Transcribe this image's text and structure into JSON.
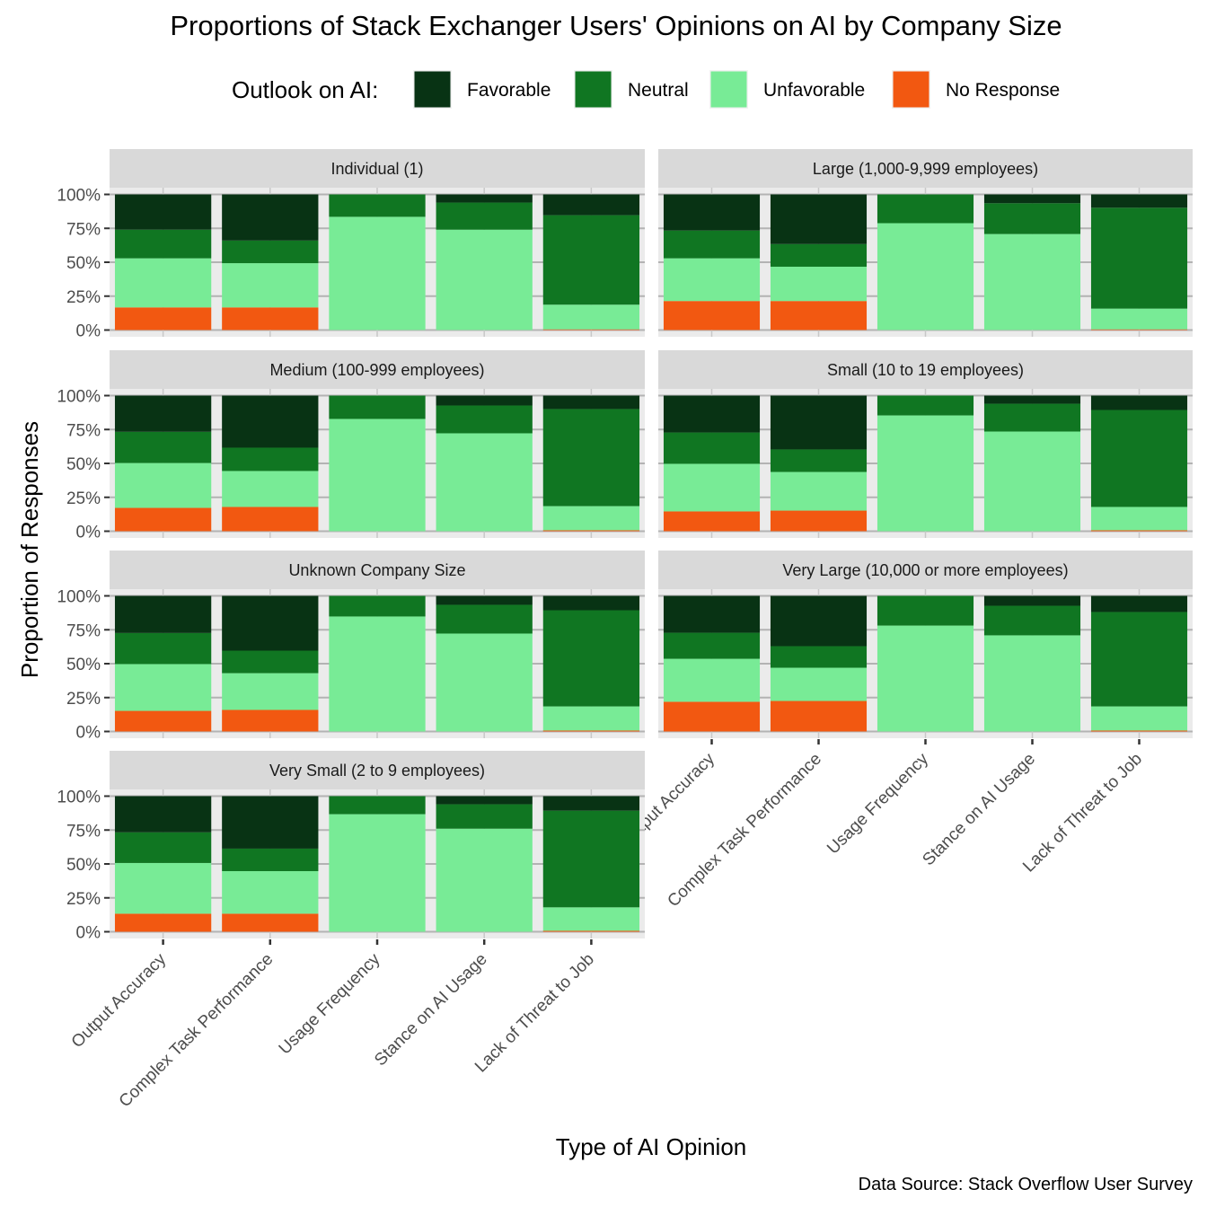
{
  "chart_data": {
    "type": "bar",
    "stacked": true,
    "title": "Proportions of Stack Exchanger Users' Opinions on AI by Company Size",
    "xlabel": "Type of AI Opinion",
    "ylabel": "Proportion of Responses",
    "caption": "Data Source: Stack Overflow User Survey",
    "legend": {
      "title": "Outlook on AI:",
      "position": "top",
      "entries": [
        {
          "name": "Favorable",
          "color": "#083314"
        },
        {
          "name": "Neutral",
          "color": "#107622"
        },
        {
          "name": "Unfavorable",
          "color": "#78EB96"
        },
        {
          "name": "No Response",
          "color": "#F25811"
        }
      ]
    },
    "ylim": [
      0,
      1
    ],
    "yticks": [
      "0%",
      "25%",
      "50%",
      "75%",
      "100%"
    ],
    "grid": true,
    "categories": [
      "Output Accuracy",
      "Complex Task Performance",
      "Usage Frequency",
      "Stance on AI Usage",
      "Lack of Threat to Job"
    ],
    "stack_order_bottom_to_top": [
      "No Response",
      "Unfavorable",
      "Neutral",
      "Favorable"
    ],
    "panels": [
      {
        "facet": "Individual (1)",
        "series": [
          {
            "name": "Favorable",
            "values": [
              0.26,
              0.34,
              0.0,
              0.06,
              0.153
            ]
          },
          {
            "name": "Neutral",
            "values": [
              0.211,
              0.167,
              0.165,
              0.2,
              0.66
            ]
          },
          {
            "name": "Unfavorable",
            "values": [
              0.362,
              0.326,
              0.835,
              0.74,
              0.182
            ]
          },
          {
            "name": "No Response",
            "values": [
              0.167,
              0.167,
              0.0,
              0.0,
              0.005
            ]
          }
        ]
      },
      {
        "facet": "Large (1,000-9,999 employees)",
        "series": [
          {
            "name": "Favorable",
            "values": [
              0.266,
              0.366,
              0.0,
              0.065,
              0.098
            ]
          },
          {
            "name": "Neutral",
            "values": [
              0.205,
              0.167,
              0.212,
              0.227,
              0.744
            ]
          },
          {
            "name": "Unfavorable",
            "values": [
              0.315,
              0.253,
              0.788,
              0.708,
              0.153
            ]
          },
          {
            "name": "No Response",
            "values": [
              0.214,
              0.214,
              0.0,
              0.0,
              0.005
            ]
          }
        ]
      },
      {
        "facet": "Medium (100-999 employees)",
        "series": [
          {
            "name": "Favorable",
            "values": [
              0.267,
              0.384,
              0.0,
              0.073,
              0.099
            ]
          },
          {
            "name": "Neutral",
            "values": [
              0.23,
              0.172,
              0.172,
              0.205,
              0.716
            ]
          },
          {
            "name": "Unfavorable",
            "values": [
              0.331,
              0.265,
              0.828,
              0.722,
              0.178
            ]
          },
          {
            "name": "No Response",
            "values": [
              0.172,
              0.179,
              0.0,
              0.0,
              0.007
            ]
          }
        ]
      },
      {
        "facet": "Small (10 to 19 employees)",
        "series": [
          {
            "name": "Favorable",
            "values": [
              0.272,
              0.397,
              0.0,
              0.06,
              0.106
            ]
          },
          {
            "name": "Neutral",
            "values": [
              0.231,
              0.166,
              0.146,
              0.205,
              0.715
            ]
          },
          {
            "name": "Unfavorable",
            "values": [
              0.351,
              0.285,
              0.854,
              0.735,
              0.172
            ]
          },
          {
            "name": "No Response",
            "values": [
              0.146,
              0.152,
              0.0,
              0.0,
              0.007
            ]
          }
        ]
      },
      {
        "facet": "Unknown Company Size",
        "series": [
          {
            "name": "Favorable",
            "values": [
              0.274,
              0.404,
              0.0,
              0.066,
              0.106
            ]
          },
          {
            "name": "Neutral",
            "values": [
              0.229,
              0.166,
              0.152,
              0.212,
              0.709
            ]
          },
          {
            "name": "Unfavorable",
            "values": [
              0.345,
              0.271,
              0.848,
              0.722,
              0.178
            ]
          },
          {
            "name": "No Response",
            "values": [
              0.152,
              0.159,
              0.0,
              0.0,
              0.007
            ]
          }
        ]
      },
      {
        "facet": "Very Large (10,000 or more employees)",
        "series": [
          {
            "name": "Favorable",
            "values": [
              0.272,
              0.371,
              0.0,
              0.073,
              0.119
            ]
          },
          {
            "name": "Neutral",
            "values": [
              0.192,
              0.159,
              0.219,
              0.218,
              0.696
            ]
          },
          {
            "name": "Unfavorable",
            "values": [
              0.317,
              0.245,
              0.781,
              0.709,
              0.178
            ]
          },
          {
            "name": "No Response",
            "values": [
              0.219,
              0.225,
              0.0,
              0.0,
              0.007
            ]
          }
        ]
      },
      {
        "facet": "Very Small (2 to 9 employees)",
        "series": [
          {
            "name": "Favorable",
            "values": [
              0.267,
              0.387,
              0.0,
              0.06,
              0.107
            ]
          },
          {
            "name": "Neutral",
            "values": [
              0.226,
              0.166,
              0.133,
              0.18,
              0.713
            ]
          },
          {
            "name": "Unfavorable",
            "values": [
              0.374,
              0.314,
              0.867,
              0.76,
              0.173
            ]
          },
          {
            "name": "No Response",
            "values": [
              0.133,
              0.133,
              0.0,
              0.0,
              0.007
            ]
          }
        ]
      }
    ]
  }
}
